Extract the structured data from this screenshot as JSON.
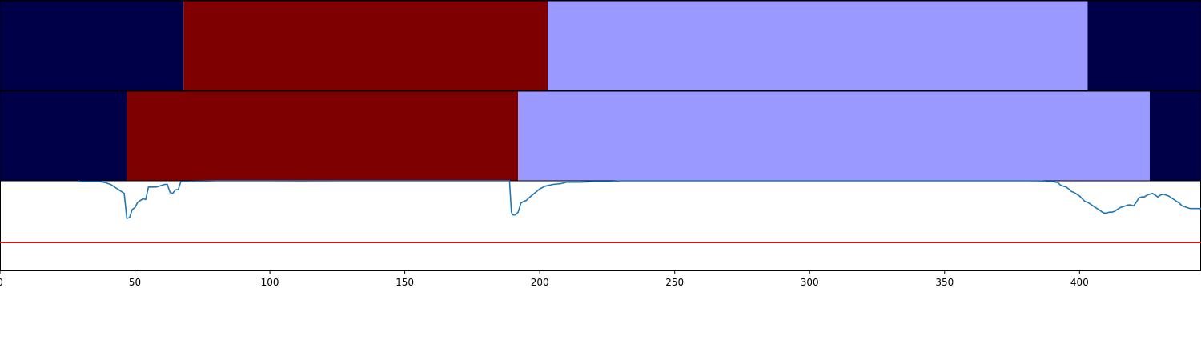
{
  "chart_data": {
    "type": "line",
    "xlim": [
      0,
      445
    ],
    "x_ticks": [
      0,
      50,
      100,
      150,
      200,
      250,
      300,
      350,
      400
    ],
    "grid": false,
    "legend": "none",
    "colors": {
      "dark_navy": "#000048",
      "dark_red": "#7f0000",
      "light_blue": "#9999ff",
      "series_line": "#1f77b4",
      "threshold_line": "#ff0000"
    },
    "segment_bands": [
      {
        "segments": [
          {
            "start": 0,
            "end": 68,
            "color": "dark_navy"
          },
          {
            "start": 68,
            "end": 203,
            "color": "dark_red"
          },
          {
            "start": 203,
            "end": 403,
            "color": "light_blue"
          },
          {
            "start": 403,
            "end": 445,
            "color": "dark_navy"
          }
        ]
      },
      {
        "segments": [
          {
            "start": 0,
            "end": 47,
            "color": "dark_navy"
          },
          {
            "start": 47,
            "end": 192,
            "color": "dark_red"
          },
          {
            "start": 192,
            "end": 426,
            "color": "light_blue"
          },
          {
            "start": 426,
            "end": 445,
            "color": "dark_navy"
          }
        ]
      }
    ],
    "ylim": [
      0,
      1
    ],
    "threshold": 0.31,
    "series": [
      {
        "x": [
          29,
          30,
          33,
          35,
          37,
          39,
          41,
          43,
          44,
          45,
          46,
          47,
          48,
          49,
          50,
          51,
          52,
          53,
          54,
          55,
          56,
          58,
          60,
          61,
          62,
          63,
          64,
          65,
          66,
          67,
          80,
          100,
          110,
          125,
          150,
          175,
          188,
          188.8,
          189.5,
          190,
          191,
          192,
          193,
          194,
          195,
          196,
          198,
          200,
          202,
          205,
          208,
          210,
          215,
          220,
          226,
          230,
          240,
          250,
          300,
          380,
          385,
          388,
          390,
          392,
          393,
          394,
          395,
          396,
          397,
          398,
          399,
          400,
          401,
          402,
          403,
          404,
          405,
          406,
          407,
          408,
          409,
          410,
          411,
          412,
          413,
          414,
          415,
          416,
          417,
          418,
          419,
          420,
          421,
          422,
          423,
          424,
          425,
          426,
          427,
          428,
          429,
          430,
          431,
          432,
          433,
          434,
          435,
          436,
          437,
          438,
          439,
          440,
          441,
          442,
          443,
          444,
          445
        ],
        "y": [
          1.0,
          0.99,
          0.99,
          0.99,
          0.99,
          0.98,
          0.96,
          0.92,
          0.9,
          0.88,
          0.86,
          0.58,
          0.59,
          0.68,
          0.7,
          0.76,
          0.78,
          0.8,
          0.79,
          0.93,
          0.93,
          0.93,
          0.95,
          0.96,
          0.96,
          0.87,
          0.86,
          0.9,
          0.9,
          0.99,
          1.0,
          1.0,
          0.999,
          1.0,
          1.0,
          1.0,
          1.0,
          1.0,
          0.65,
          0.62,
          0.62,
          0.65,
          0.75,
          0.77,
          0.78,
          0.81,
          0.86,
          0.91,
          0.94,
          0.96,
          0.97,
          0.985,
          0.985,
          0.99,
          0.99,
          1.0,
          1.0,
          1.0,
          1.0,
          1.0,
          0.999,
          0.99,
          0.99,
          0.98,
          0.95,
          0.94,
          0.93,
          0.91,
          0.88,
          0.87,
          0.85,
          0.83,
          0.8,
          0.77,
          0.76,
          0.74,
          0.72,
          0.7,
          0.68,
          0.66,
          0.64,
          0.64,
          0.65,
          0.65,
          0.66,
          0.68,
          0.7,
          0.71,
          0.72,
          0.73,
          0.73,
          0.72,
          0.76,
          0.81,
          0.82,
          0.82,
          0.84,
          0.85,
          0.86,
          0.84,
          0.82,
          0.84,
          0.85,
          0.84,
          0.83,
          0.81,
          0.79,
          0.77,
          0.75,
          0.72,
          0.71,
          0.7,
          0.69,
          0.69,
          0.69,
          0.69,
          0.69
        ]
      }
    ]
  }
}
